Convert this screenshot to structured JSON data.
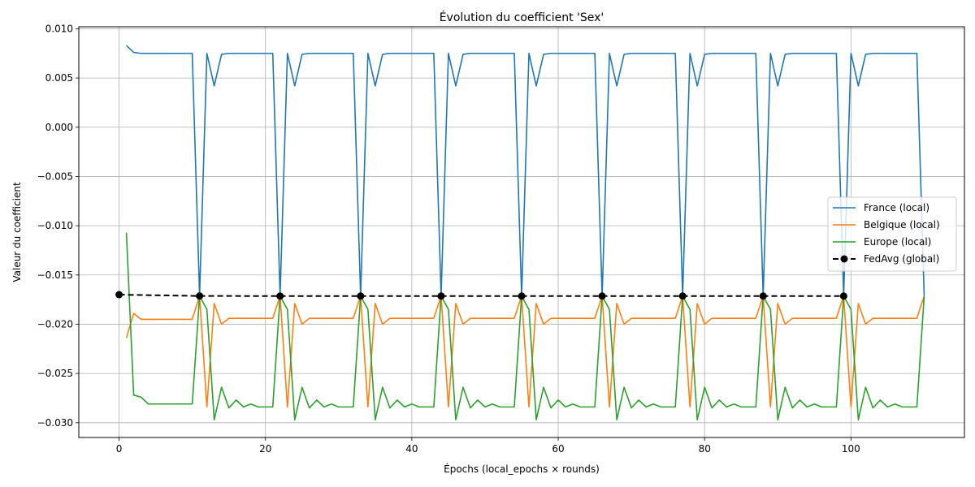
{
  "chart_data": {
    "type": "line",
    "title": "Évolution du coefficient 'Sex'",
    "xlabel": "Épochs (local_epochs × rounds)",
    "ylabel": "Valeur du coefficient",
    "xlim": [
      -5.5,
      115.5
    ],
    "ylim": [
      -0.0315,
      0.0102
    ],
    "xticks": [
      0,
      20,
      40,
      60,
      80,
      100
    ],
    "xtick_labels": [
      "0",
      "20",
      "40",
      "60",
      "80",
      "100"
    ],
    "yticks": [
      0.01,
      0.005,
      0.0,
      -0.005,
      -0.01,
      -0.015,
      -0.02,
      -0.025,
      -0.03
    ],
    "ytick_labels": [
      "0.010",
      "0.005",
      "0.000",
      "−0.005",
      "−0.010",
      "−0.015",
      "−0.020",
      "−0.025",
      "−0.030"
    ],
    "grid": true,
    "legend_position": "center-right",
    "series": [
      {
        "name": "France (local)",
        "color": "#1f77b4",
        "style": "solid",
        "local_pattern": [
          0.0075,
          0.0042,
          0.0074,
          0.0075,
          0.0075,
          0.0075,
          0.0075,
          0.0075,
          0.0075,
          0.0075,
          0.0075
        ],
        "first_round_pattern": [
          0.0083,
          0.0076,
          0.0075,
          0.0075,
          0.0075,
          0.0075,
          0.0075,
          0.0075,
          0.0075,
          0.0075,
          0.0075
        ]
      },
      {
        "name": "Belgique (local)",
        "color": "#ff7f0e",
        "style": "solid",
        "local_pattern": [
          -0.0284,
          -0.0179,
          -0.02,
          -0.0194,
          -0.0194,
          -0.0194,
          -0.0194,
          -0.0194,
          -0.0194,
          -0.0194,
          -0.0194
        ],
        "first_round_pattern": [
          -0.0214,
          -0.0189,
          -0.0195,
          -0.0195,
          -0.0195,
          -0.0195,
          -0.0195,
          -0.0195,
          -0.0195,
          -0.0195,
          -0.0195
        ]
      },
      {
        "name": "Europe (local)",
        "color": "#2ca02c",
        "style": "solid",
        "local_pattern": [
          -0.0185,
          -0.0297,
          -0.0264,
          -0.0285,
          -0.0277,
          -0.0284,
          -0.0281,
          -0.0284,
          -0.0284,
          -0.0284,
          -0.0284
        ],
        "first_round_pattern": [
          -0.0107,
          -0.0272,
          -0.0274,
          -0.0281,
          -0.0281,
          -0.0281,
          -0.0281,
          -0.0281,
          -0.0281,
          -0.0281,
          -0.0281
        ]
      },
      {
        "name": "FedAvg (global)",
        "color": "#000000",
        "style": "dashed",
        "markers": true,
        "x": [
          0,
          11,
          22,
          33,
          44,
          55,
          66,
          77,
          88,
          99
        ],
        "values": [
          -0.017,
          -0.01713,
          -0.01714,
          -0.01714,
          -0.01714,
          -0.01714,
          -0.01714,
          -0.01714,
          -0.01714,
          -0.01714
        ]
      }
    ],
    "rounds": 10,
    "local_epochs": 11
  }
}
